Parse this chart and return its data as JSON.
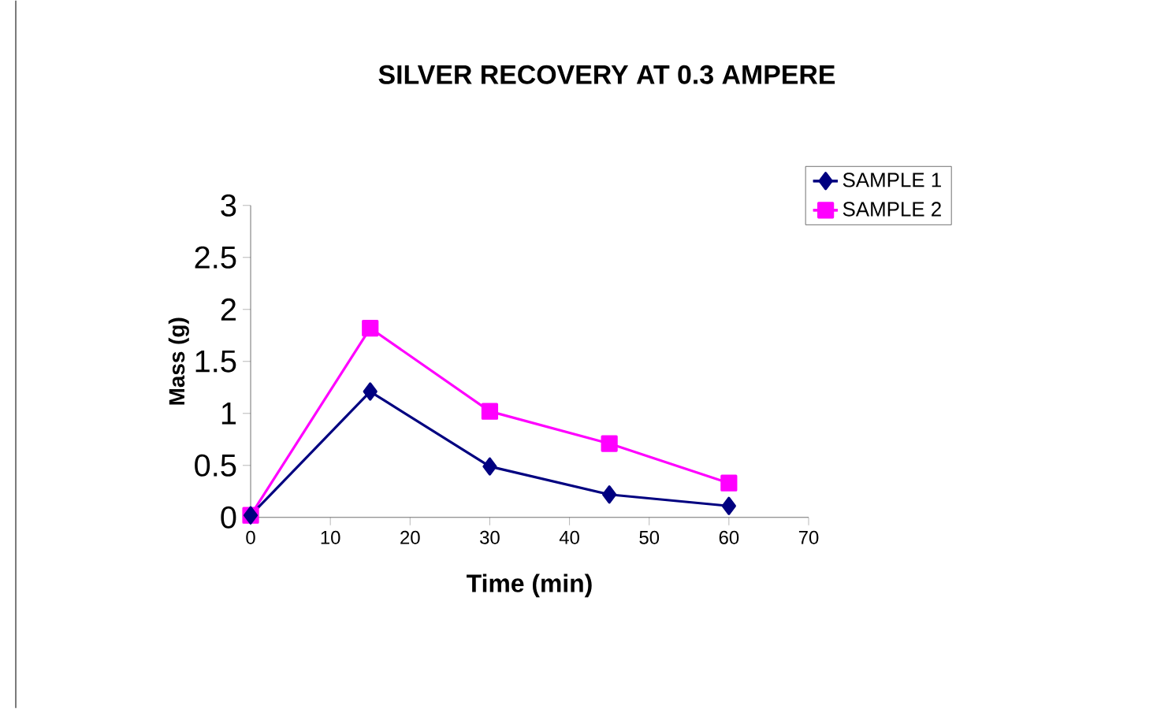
{
  "chart_data": {
    "type": "line",
    "title": "SILVER RECOVERY AT 0.3 AMPERE",
    "xlabel": "Time (min)",
    "ylabel": "Mass (g)",
    "x": [
      0,
      15,
      30,
      45,
      60
    ],
    "series": [
      {
        "name": "SAMPLE 1",
        "color": "#000080",
        "marker": "diamond",
        "values": [
          0.02,
          1.21,
          0.49,
          0.22,
          0.11
        ]
      },
      {
        "name": "SAMPLE 2",
        "color": "#ff00ff",
        "marker": "square",
        "values": [
          0.02,
          1.82,
          1.02,
          0.71,
          0.33
        ]
      }
    ],
    "xlim": [
      0,
      70
    ],
    "xticks": [
      0,
      10,
      20,
      30,
      40,
      50,
      60,
      70
    ],
    "ylim": [
      0,
      3
    ],
    "yticks": [
      0,
      0.5,
      1,
      1.5,
      2,
      2.5,
      3
    ],
    "legend": "top right",
    "line_style": "solid"
  }
}
